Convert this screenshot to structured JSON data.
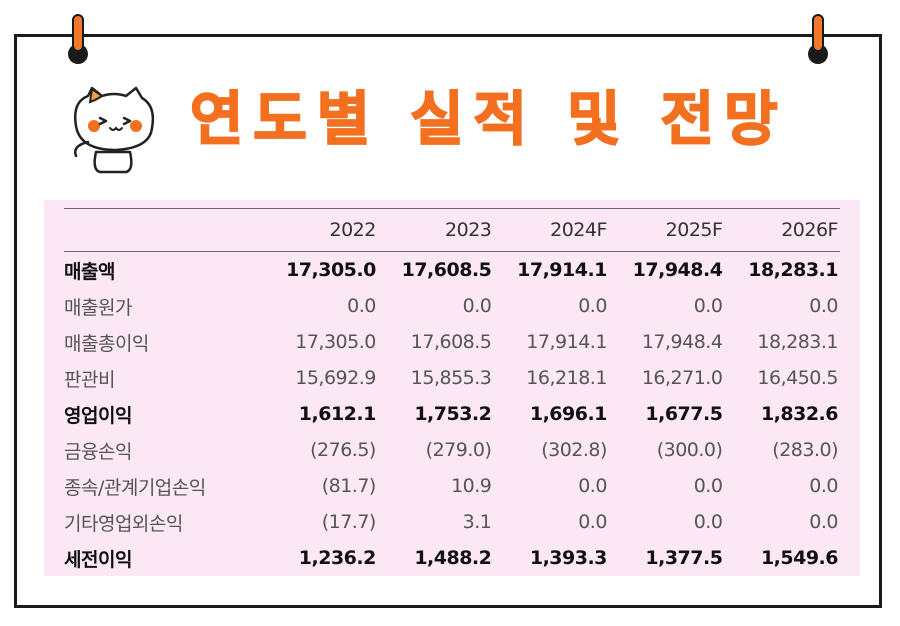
{
  "title": "연도별 실적 및 전망",
  "table": {
    "columns": [
      "",
      "2022",
      "2023",
      "2024F",
      "2025F",
      "2026F"
    ],
    "rows": [
      {
        "label": "매출액",
        "bold": true,
        "values": [
          "17,305.0",
          "17,608.5",
          "17,914.1",
          "17,948.4",
          "18,283.1"
        ]
      },
      {
        "label": "매출원가",
        "bold": false,
        "values": [
          "0.0",
          "0.0",
          "0.0",
          "0.0",
          "0.0"
        ]
      },
      {
        "label": "매출총이익",
        "bold": false,
        "values": [
          "17,305.0",
          "17,608.5",
          "17,914.1",
          "17,948.4",
          "18,283.1"
        ]
      },
      {
        "label": "판관비",
        "bold": false,
        "values": [
          "15,692.9",
          "15,855.3",
          "16,218.1",
          "16,271.0",
          "16,450.5"
        ]
      },
      {
        "label": "영업이익",
        "bold": true,
        "values": [
          "1,612.1",
          "1,753.2",
          "1,696.1",
          "1,677.5",
          "1,832.6"
        ]
      },
      {
        "label": "금융손익",
        "bold": false,
        "values": [
          "(276.5)",
          "(279.0)",
          "(302.8)",
          "(300.0)",
          "(283.0)"
        ]
      },
      {
        "label": "종속/관계기업손익",
        "bold": false,
        "values": [
          "(81.7)",
          "10.9",
          "0.0",
          "0.0",
          "0.0"
        ]
      },
      {
        "label": "기타영업외손익",
        "bold": false,
        "values": [
          "(17.7)",
          "3.1",
          "0.0",
          "0.0",
          "0.0"
        ]
      },
      {
        "label": "세전이익",
        "bold": true,
        "values": [
          "1,236.2",
          "1,488.2",
          "1,393.3",
          "1,377.5",
          "1,549.6"
        ]
      }
    ]
  },
  "colors": {
    "accent": "#f2701f",
    "panel": "#fbe8f4",
    "frame": "#1a1a1a"
  },
  "icons": {
    "mascot": "cat-mascot-icon",
    "pin": "binder-pin-icon"
  }
}
